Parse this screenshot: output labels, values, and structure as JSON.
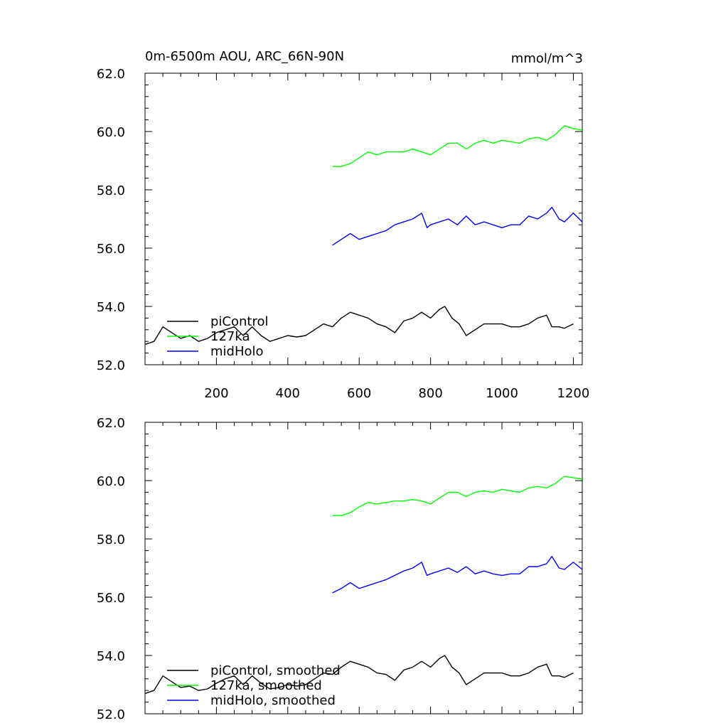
{
  "chart_data": [
    {
      "type": "line",
      "title_left": "0m-6500m AOU, ARC_66N-90N",
      "title_right": "mmol/m^3",
      "xlim": [
        0,
        1225
      ],
      "ylim": [
        52,
        62
      ],
      "y_ticks": [
        "52.0",
        "54.0",
        "56.0",
        "58.0",
        "60.0",
        "62.0"
      ],
      "x_ticks": [
        "200",
        "400",
        "600",
        "800",
        "1000",
        "1200"
      ],
      "grid": false,
      "legend_position": "bottom-left",
      "series": [
        {
          "name": "piControl",
          "color": "#000000",
          "x": [
            1,
            25,
            50,
            75,
            100,
            125,
            150,
            175,
            200,
            225,
            250,
            275,
            300,
            325,
            350,
            375,
            400,
            425,
            450,
            475,
            500,
            525,
            550,
            575,
            600,
            625,
            650,
            675,
            700,
            725,
            750,
            775,
            800,
            825,
            840,
            860,
            880,
            900,
            925,
            950,
            975,
            1000,
            1025,
            1050,
            1075,
            1100,
            1125,
            1140,
            1160,
            1175,
            1200
          ],
          "y": [
            52.7,
            52.8,
            53.3,
            53.1,
            52.9,
            53.0,
            52.8,
            52.9,
            53.1,
            53.2,
            53.3,
            53.0,
            53.3,
            53.0,
            52.8,
            52.9,
            53.0,
            52.95,
            53.0,
            53.2,
            53.4,
            53.3,
            53.6,
            53.8,
            53.7,
            53.6,
            53.4,
            53.3,
            53.1,
            53.5,
            53.6,
            53.8,
            53.6,
            53.9,
            54.0,
            53.6,
            53.4,
            53.0,
            53.2,
            53.4,
            53.4,
            53.4,
            53.3,
            53.3,
            53.4,
            53.6,
            53.7,
            53.3,
            53.3,
            53.25,
            53.4
          ]
        },
        {
          "name": "127ka",
          "color": "#00ff00",
          "x": [
            525,
            550,
            575,
            600,
            625,
            650,
            675,
            700,
            725,
            750,
            775,
            800,
            825,
            850,
            875,
            900,
            925,
            950,
            975,
            1000,
            1025,
            1050,
            1075,
            1100,
            1125,
            1150,
            1175,
            1200,
            1225
          ],
          "y": [
            58.8,
            58.8,
            58.9,
            59.1,
            59.3,
            59.2,
            59.3,
            59.3,
            59.3,
            59.4,
            59.3,
            59.2,
            59.4,
            59.6,
            59.6,
            59.4,
            59.6,
            59.7,
            59.6,
            59.7,
            59.65,
            59.6,
            59.75,
            59.8,
            59.7,
            59.9,
            60.2,
            60.1,
            60.05
          ]
        },
        {
          "name": "midHolo",
          "color": "#0000ff",
          "x": [
            525,
            550,
            575,
            600,
            625,
            650,
            675,
            700,
            725,
            750,
            775,
            790,
            800,
            825,
            850,
            875,
            900,
            925,
            950,
            975,
            1000,
            1025,
            1050,
            1075,
            1100,
            1125,
            1140,
            1160,
            1175,
            1200,
            1225
          ],
          "y": [
            56.1,
            56.3,
            56.5,
            56.3,
            56.4,
            56.5,
            56.6,
            56.8,
            56.9,
            57.0,
            57.2,
            56.7,
            56.8,
            56.9,
            57.0,
            56.8,
            57.1,
            56.8,
            56.9,
            56.8,
            56.7,
            56.8,
            56.8,
            57.1,
            57.0,
            57.2,
            57.4,
            57.0,
            56.9,
            57.2,
            56.9
          ]
        }
      ]
    },
    {
      "type": "line",
      "xlim": [
        0,
        1225
      ],
      "ylim": [
        52,
        62
      ],
      "y_ticks": [
        "52.0",
        "54.0",
        "56.0",
        "58.0",
        "60.0",
        "62.0"
      ],
      "grid": false,
      "legend_position": "bottom-left",
      "series": [
        {
          "name": "piControl, smoothed",
          "color": "#000000",
          "x": [
            1,
            25,
            50,
            75,
            100,
            125,
            150,
            175,
            200,
            225,
            250,
            275,
            300,
            325,
            350,
            375,
            400,
            425,
            450,
            475,
            500,
            525,
            550,
            575,
            600,
            625,
            650,
            675,
            700,
            725,
            750,
            775,
            800,
            825,
            840,
            860,
            880,
            900,
            925,
            950,
            975,
            1000,
            1025,
            1050,
            1075,
            1100,
            1125,
            1140,
            1160,
            1175,
            1200
          ],
          "y": [
            52.7,
            52.8,
            53.3,
            53.1,
            52.9,
            52.95,
            52.8,
            52.85,
            53.05,
            53.2,
            53.3,
            53.0,
            53.3,
            53.05,
            52.85,
            52.9,
            53.0,
            52.95,
            53.0,
            53.2,
            53.4,
            53.35,
            53.6,
            53.8,
            53.7,
            53.6,
            53.4,
            53.35,
            53.15,
            53.5,
            53.6,
            53.8,
            53.6,
            53.9,
            54.0,
            53.6,
            53.4,
            53.0,
            53.2,
            53.4,
            53.4,
            53.4,
            53.3,
            53.3,
            53.4,
            53.6,
            53.7,
            53.3,
            53.3,
            53.25,
            53.4
          ]
        },
        {
          "name": "127ka, smoothed",
          "color": "#00ff00",
          "x": [
            525,
            550,
            575,
            600,
            625,
            650,
            675,
            700,
            725,
            750,
            775,
            800,
            825,
            850,
            875,
            900,
            925,
            950,
            975,
            1000,
            1025,
            1050,
            1075,
            1100,
            1125,
            1150,
            1175,
            1200,
            1225
          ],
          "y": [
            58.8,
            58.8,
            58.9,
            59.1,
            59.25,
            59.2,
            59.25,
            59.3,
            59.3,
            59.35,
            59.3,
            59.2,
            59.4,
            59.6,
            59.6,
            59.45,
            59.6,
            59.65,
            59.6,
            59.7,
            59.65,
            59.6,
            59.75,
            59.8,
            59.75,
            59.9,
            60.15,
            60.1,
            60.05
          ]
        },
        {
          "name": "midHolo, smoothed",
          "color": "#0000ff",
          "x": [
            525,
            550,
            575,
            600,
            625,
            650,
            675,
            700,
            725,
            750,
            775,
            790,
            800,
            825,
            850,
            875,
            900,
            925,
            950,
            975,
            1000,
            1025,
            1050,
            1075,
            1100,
            1125,
            1140,
            1160,
            1175,
            1200,
            1225
          ],
          "y": [
            56.15,
            56.3,
            56.5,
            56.3,
            56.4,
            56.5,
            56.6,
            56.75,
            56.9,
            57.0,
            57.2,
            56.75,
            56.8,
            56.9,
            57.0,
            56.85,
            57.05,
            56.8,
            56.9,
            56.8,
            56.75,
            56.8,
            56.8,
            57.05,
            57.05,
            57.15,
            57.4,
            57.0,
            56.95,
            57.2,
            56.95
          ]
        }
      ]
    }
  ]
}
